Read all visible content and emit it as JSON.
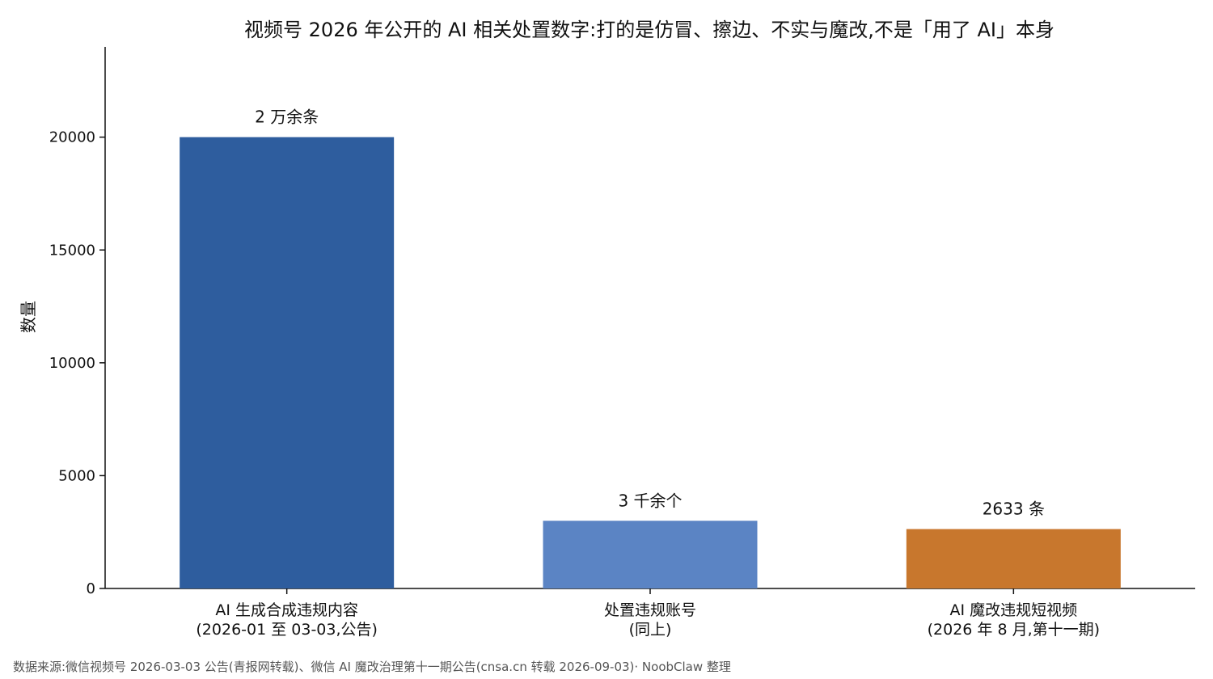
{
  "chart_data": {
    "type": "bar",
    "title": "视频号 2026 年公开的 AI 相关处置数字:打的是仿冒、擦边、不实与魔改,不是「用了 AI」本身",
    "xlabel": "",
    "ylabel": "数量",
    "ylim": [
      0,
      24000
    ],
    "yticks": [
      0,
      5000,
      10000,
      15000,
      20000
    ],
    "grid": false,
    "categories": [
      [
        "AI 生成合成违规内容",
        "(2026-01 至 03-03,公告)"
      ],
      [
        "处置违规账号",
        "(同上)"
      ],
      [
        "AI 魔改违规短视频",
        "(2026 年 8 月,第十一期)"
      ]
    ],
    "values": [
      20000,
      3000,
      2633
    ],
    "data_labels": [
      "2 万余条",
      "3 千余个",
      "2633 条"
    ],
    "colors": [
      "#2e5d9e",
      "#5b84c4",
      "#c8772d"
    ]
  },
  "footer": {
    "source": "数据来源:微信视频号 2026-03-03 公告(青报网转载)、微信 AI 魔改治理第十一期公告(cnsa.cn 转载 2026-09-03)· NoobClaw 整理"
  }
}
